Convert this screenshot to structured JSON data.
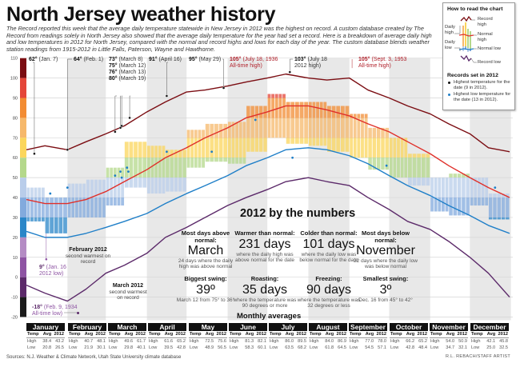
{
  "header": {
    "title": "North Jersey weather history",
    "intro": "The Record reported this week that the average daily temperature statewide in New Jersey in 2012 was the highest on record. A custom database created by The Record from readings solely in North Jersey also showed that the average daily temperature for the year had set a record. Here is a breakdown of average daily high and low temperatures in 2012 for North Jersey, compared with the normal and record highs and lows for each day of the year. The custom database blends weather station readings from 1915-2012 in Little Falls, Paterson, Wayne and Hawthorne."
  },
  "legend": {
    "title": "How to read the chart",
    "labels": [
      "Record high",
      "Daily high",
      "Normal high",
      "Daily low",
      "Normal low",
      "Record low"
    ],
    "records_title": "Records set in 2012",
    "records": [
      {
        "text": "Highest temperature for the date (9 in 2012).",
        "color": "#111111"
      },
      {
        "text": "Highest low temperature for the date (13 in 2012).",
        "color": "#1f7fc8"
      }
    ]
  },
  "annotations": {
    "top": [
      {
        "value": "62°",
        "text": "(Jan. 7)"
      },
      {
        "value": "64°",
        "text": "(Feb. 1)"
      },
      {
        "value": "73°",
        "text": "(March 8)"
      },
      {
        "value": "75°",
        "text": "(March 12)"
      },
      {
        "value": "76°",
        "text": "(March 13)"
      },
      {
        "value": "80°",
        "text": "(March 19)"
      },
      {
        "value": "91°",
        "text": "(April 16)"
      },
      {
        "value": "95°",
        "text": "(May 29)"
      },
      {
        "value": "105°",
        "text": "(July 18, 1936",
        "text2": "All-time high)"
      },
      {
        "value": "103°",
        "text": "(July 18",
        "text2": "2012 high)"
      },
      {
        "value": "105°",
        "text": "(Sept. 3, 1953",
        "text2": "All-time high)"
      }
    ],
    "low_2012": {
      "value": "9°",
      "text": "(Jan. 16",
      "text2": "2012 low)"
    },
    "all_time_low": {
      "value": "-18°",
      "text": "(Feb. 9, 1934",
      "text2": "All-time low)"
    },
    "feb_note": {
      "title": "February 2012",
      "text": "second warmest on record"
    },
    "mar_note": {
      "title": "March 2012",
      "text": "second warmest on record"
    }
  },
  "numbers": {
    "title": "2012 by the numbers",
    "stats": [
      {
        "label": "Most days above normal:",
        "value": "March",
        "desc": "24 days where the daily high was above normal"
      },
      {
        "label": "Warmer than normal:",
        "value": "231 days",
        "desc": "where the daily high was above normal for the date"
      },
      {
        "label": "Colder than normal:",
        "value": "101 days",
        "desc": "where the daily low was below normal for the date"
      },
      {
        "label": "Most days below normal:",
        "value": "November",
        "desc": "22 days where the daily low was below normal"
      },
      {
        "label": "Biggest swing:",
        "value": "39º",
        "desc": "March 12 from 75° to 36°"
      },
      {
        "label": "Roasting:",
        "value": "35 days",
        "desc": "where the temperature was 90 degrees or more"
      },
      {
        "label": "Freezing:",
        "value": "90 days",
        "desc": "where the temperature was 32 degrees or less"
      },
      {
        "label": "Smallest swing:",
        "value": "3º",
        "desc": "Dec. 16 from 45° to 42°"
      }
    ]
  },
  "monthly": {
    "title": "Monthly averages",
    "headers": [
      "Temp",
      "Avg",
      "2012"
    ],
    "row_labels": [
      "High",
      "Low"
    ],
    "months": [
      {
        "name": "January",
        "high": [
          "38.4",
          "43.2"
        ],
        "low": [
          "20.8",
          "26.5"
        ]
      },
      {
        "name": "February",
        "high": [
          "40.7",
          "48.1"
        ],
        "low": [
          "21.9",
          "30.1"
        ]
      },
      {
        "name": "March",
        "high": [
          "49.6",
          "61.7"
        ],
        "low": [
          "29.8",
          "40.1"
        ]
      },
      {
        "name": "April",
        "high": [
          "61.6",
          "65.2"
        ],
        "low": [
          "39.5",
          "42.8"
        ]
      },
      {
        "name": "May",
        "high": [
          "72.5",
          "75.6"
        ],
        "low": [
          "48.9",
          "56.5"
        ]
      },
      {
        "name": "June",
        "high": [
          "81.3",
          "82.1"
        ],
        "low": [
          "58.3",
          "60.1"
        ]
      },
      {
        "name": "July",
        "high": [
          "86.0",
          "89.5"
        ],
        "low": [
          "63.5",
          "68.2"
        ]
      },
      {
        "name": "August",
        "high": [
          "84.0",
          "86.9"
        ],
        "low": [
          "61.8",
          "64.5"
        ]
      },
      {
        "name": "September",
        "high": [
          "77.0",
          "78.0"
        ],
        "low": [
          "54.5",
          "57.1"
        ]
      },
      {
        "name": "October",
        "high": [
          "66.2",
          "65.2"
        ],
        "low": [
          "42.8",
          "48.4"
        ]
      },
      {
        "name": "November",
        "high": [
          "54.0",
          "50.9"
        ],
        "low": [
          "34.7",
          "32.1"
        ]
      },
      {
        "name": "December",
        "high": [
          "42.1",
          "45.8"
        ],
        "low": [
          "25.0",
          "32.5"
        ]
      }
    ]
  },
  "footer": {
    "sources": "Sources: N.J. Weather & Climate Network, Utah State University climate database",
    "credit": "R.L. REBACH/STAFF ARTIST"
  },
  "chart_data": {
    "type": "line",
    "ylim": [
      -20,
      110
    ],
    "yticks": [
      110,
      100,
      90,
      80,
      70,
      60,
      50,
      40,
      30,
      20,
      10,
      0,
      -10,
      -20
    ],
    "grid": true,
    "band_colors": [
      {
        "from": 100,
        "to": 110,
        "color": "#7b0d12"
      },
      {
        "from": 90,
        "to": 100,
        "color": "#e4463a"
      },
      {
        "from": 80,
        "to": 90,
        "color": "#f28c33"
      },
      {
        "from": 70,
        "to": 80,
        "color": "#f6b86b"
      },
      {
        "from": 60,
        "to": 70,
        "color": "#fbd65c"
      },
      {
        "from": 50,
        "to": 60,
        "color": "#b4d88b"
      },
      {
        "from": 40,
        "to": 50,
        "color": "#b9cdea"
      },
      {
        "from": 30,
        "to": 40,
        "color": "#82aadd"
      },
      {
        "from": 20,
        "to": 30,
        "color": "#2a86c8"
      },
      {
        "from": 10,
        "to": 20,
        "color": "#b48cc4"
      },
      {
        "from": 0,
        "to": 10,
        "color": "#8e54a3"
      },
      {
        "from": -10,
        "to": 0,
        "color": "#5c2a6a"
      },
      {
        "from": -20,
        "to": -10,
        "color": "#1a1a1a"
      }
    ],
    "x": [
      "01-01",
      "01-15",
      "02-01",
      "02-15",
      "03-01",
      "03-15",
      "04-01",
      "04-15",
      "05-01",
      "05-15",
      "06-01",
      "06-15",
      "07-01",
      "07-15",
      "08-01",
      "08-15",
      "09-01",
      "09-15",
      "10-01",
      "10-15",
      "11-01",
      "11-15",
      "12-01",
      "12-15",
      "12-31"
    ],
    "series": [
      {
        "name": "Record high",
        "color": "#7b0d12",
        "values": [
          64,
          66,
          64,
          68,
          72,
          76,
          83,
          88,
          93,
          94,
          96,
          98,
          100,
          102,
          100,
          99,
          100,
          94,
          90,
          86,
          82,
          77,
          72,
          65,
          63
        ]
      },
      {
        "name": "Normal high",
        "color": "#e0302a",
        "values": [
          39,
          37,
          37,
          39,
          43,
          48,
          54,
          60,
          65,
          70,
          75,
          80,
          83,
          86,
          86,
          84,
          81,
          77,
          73,
          68,
          62,
          56,
          50,
          45,
          40
        ]
      },
      {
        "name": "Normal low",
        "color": "#1f7fc8",
        "values": [
          23,
          20,
          20,
          22,
          25,
          28,
          32,
          37,
          42,
          46,
          51,
          56,
          60,
          64,
          65,
          64,
          61,
          57,
          51,
          46,
          41,
          36,
          31,
          26,
          22
        ]
      },
      {
        "name": "Record low",
        "color": "#5c2a6a",
        "values": [
          -4,
          -8,
          -12,
          -6,
          2,
          6,
          12,
          20,
          25,
          30,
          36,
          40,
          44,
          48,
          50,
          48,
          46,
          40,
          34,
          28,
          24,
          18,
          10,
          2,
          -10
        ]
      }
    ],
    "daily_2012": {
      "periods": [
        "01-01",
        "01-15",
        "02-01",
        "02-15",
        "03-01",
        "03-15",
        "04-01",
        "04-15",
        "05-01",
        "05-15",
        "06-01",
        "06-15",
        "07-01",
        "07-15",
        "08-01",
        "08-15",
        "09-01",
        "09-15",
        "10-01",
        "10-15",
        "11-01",
        "11-15",
        "12-01",
        "12-15"
      ],
      "high": [
        45,
        40,
        47,
        49,
        55,
        68,
        66,
        64,
        74,
        77,
        78,
        86,
        92,
        88,
        88,
        86,
        82,
        75,
        70,
        62,
        50,
        52,
        50,
        42
      ],
      "low": [
        28,
        22,
        30,
        30,
        36,
        45,
        42,
        43,
        55,
        58,
        57,
        63,
        70,
        67,
        66,
        63,
        60,
        54,
        50,
        46,
        33,
        31,
        36,
        29
      ]
    },
    "records_2012_high": [
      {
        "date": "01-07",
        "value": 62
      },
      {
        "date": "02-01",
        "value": 64
      },
      {
        "date": "03-08",
        "value": 73
      },
      {
        "date": "03-12",
        "value": 75
      },
      {
        "date": "03-13",
        "value": 76
      },
      {
        "date": "03-19",
        "value": 80
      },
      {
        "date": "04-16",
        "value": 91
      },
      {
        "date": "05-29",
        "value": 95
      },
      {
        "date": "07-18",
        "value": 103
      }
    ],
    "records_2012_high_low": [
      {
        "date": "01-19",
        "value": 42
      },
      {
        "date": "02-01",
        "value": 45
      },
      {
        "date": "03-08",
        "value": 51
      },
      {
        "date": "03-12",
        "value": 53
      },
      {
        "date": "03-13",
        "value": 50
      },
      {
        "date": "03-17",
        "value": 55
      },
      {
        "date": "03-18",
        "value": 53
      },
      {
        "date": "04-16",
        "value": 63
      },
      {
        "date": "05-20",
        "value": 63
      },
      {
        "date": "06-22",
        "value": 79
      },
      {
        "date": "07-20",
        "value": 60
      },
      {
        "date": "09-29",
        "value": 56
      },
      {
        "date": "12-20",
        "value": 45
      }
    ]
  }
}
